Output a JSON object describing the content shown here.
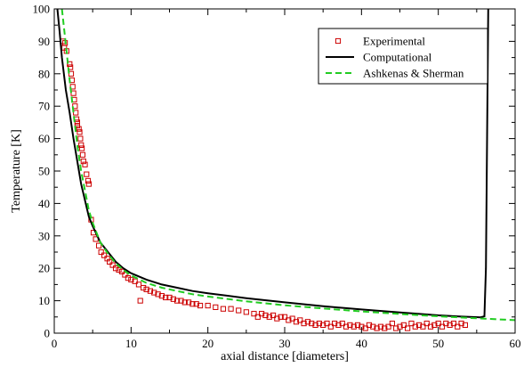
{
  "chart_data": {
    "type": "line",
    "title": "",
    "xlabel": "axial distance [diameters]",
    "ylabel": "Temperature [K]",
    "xlim": [
      0,
      60
    ],
    "ylim": [
      0,
      100
    ],
    "x_ticks": [
      0,
      10,
      20,
      30,
      40,
      50,
      60
    ],
    "y_ticks": [
      0,
      10,
      20,
      30,
      40,
      50,
      60,
      70,
      80,
      90,
      100
    ],
    "grid": false,
    "legend_position": "top-right",
    "series": [
      {
        "name": "Experimental",
        "kind": "scatter",
        "marker": "open-square",
        "color": "#cc0000",
        "points": [
          [
            1.1,
            90
          ],
          [
            1.3,
            88
          ],
          [
            1.4,
            89.5
          ],
          [
            1.6,
            87
          ],
          [
            2.0,
            83
          ],
          [
            2.1,
            82
          ],
          [
            2.2,
            80
          ],
          [
            2.3,
            78
          ],
          [
            2.4,
            76
          ],
          [
            2.5,
            74
          ],
          [
            2.6,
            72
          ],
          [
            2.7,
            70
          ],
          [
            2.8,
            68
          ],
          [
            2.9,
            66
          ],
          [
            3.0,
            65
          ],
          [
            3.0,
            64
          ],
          [
            3.2,
            63
          ],
          [
            3.3,
            62
          ],
          [
            3.4,
            60
          ],
          [
            3.5,
            58
          ],
          [
            3.6,
            57
          ],
          [
            3.7,
            55
          ],
          [
            3.8,
            53
          ],
          [
            4.0,
            52
          ],
          [
            4.2,
            49
          ],
          [
            4.4,
            47
          ],
          [
            4.5,
            46
          ],
          [
            4.8,
            35
          ],
          [
            5.1,
            31
          ],
          [
            5.4,
            29
          ],
          [
            5.8,
            27
          ],
          [
            6.1,
            25
          ],
          [
            6.5,
            24
          ],
          [
            6.9,
            23
          ],
          [
            7.2,
            22
          ],
          [
            7.6,
            21
          ],
          [
            8.0,
            20
          ],
          [
            8.4,
            19.5
          ],
          [
            8.8,
            19
          ],
          [
            9.2,
            18
          ],
          [
            9.6,
            17
          ],
          [
            10.0,
            16.5
          ],
          [
            10.5,
            16
          ],
          [
            11.0,
            15
          ],
          [
            11.2,
            10
          ],
          [
            11.6,
            14
          ],
          [
            12.0,
            13.5
          ],
          [
            12.5,
            13
          ],
          [
            13.0,
            12.5
          ],
          [
            13.5,
            12
          ],
          [
            14.0,
            11.5
          ],
          [
            14.5,
            11
          ],
          [
            15.0,
            11
          ],
          [
            15.5,
            10.5
          ],
          [
            16.0,
            10
          ],
          [
            16.5,
            10
          ],
          [
            17.0,
            9.5
          ],
          [
            17.5,
            9.5
          ],
          [
            18.0,
            9
          ],
          [
            18.5,
            9
          ],
          [
            19.0,
            8.5
          ],
          [
            20.0,
            8.5
          ],
          [
            21.0,
            8
          ],
          [
            22.0,
            7.5
          ],
          [
            23.0,
            7.5
          ],
          [
            24.0,
            7
          ],
          [
            25.0,
            6.5
          ],
          [
            26.0,
            6
          ],
          [
            26.5,
            5
          ],
          [
            27.0,
            6
          ],
          [
            27.5,
            5.5
          ],
          [
            28.0,
            5
          ],
          [
            28.5,
            5.5
          ],
          [
            29.0,
            4.5
          ],
          [
            29.5,
            5
          ],
          [
            30.0,
            5
          ],
          [
            30.5,
            4
          ],
          [
            31.0,
            4.5
          ],
          [
            31.5,
            3.5
          ],
          [
            32.0,
            4
          ],
          [
            32.5,
            3
          ],
          [
            33.0,
            3.5
          ],
          [
            33.5,
            3
          ],
          [
            34.0,
            2.5
          ],
          [
            34.5,
            3
          ],
          [
            35.0,
            2.5
          ],
          [
            35.5,
            3
          ],
          [
            36.0,
            2
          ],
          [
            36.5,
            3
          ],
          [
            37.0,
            2.5
          ],
          [
            37.5,
            3
          ],
          [
            38.0,
            2
          ],
          [
            38.5,
            2.5
          ],
          [
            39.0,
            2
          ],
          [
            39.5,
            2.5
          ],
          [
            40.0,
            2
          ],
          [
            40.5,
            1.5
          ],
          [
            41.0,
            2.5
          ],
          [
            41.5,
            2
          ],
          [
            42.0,
            1.5
          ],
          [
            42.5,
            2
          ],
          [
            43.0,
            1.5
          ],
          [
            43.5,
            2
          ],
          [
            44.0,
            3
          ],
          [
            44.5,
            1.5
          ],
          [
            45.0,
            2
          ],
          [
            45.5,
            2.5
          ],
          [
            46.0,
            1.5
          ],
          [
            46.5,
            3
          ],
          [
            47.0,
            2
          ],
          [
            47.5,
            2.5
          ],
          [
            48.0,
            2
          ],
          [
            48.5,
            3
          ],
          [
            49.0,
            2
          ],
          [
            49.5,
            2.5
          ],
          [
            50.0,
            3
          ],
          [
            50.5,
            2
          ],
          [
            51.0,
            3
          ],
          [
            51.5,
            2.5
          ],
          [
            52.0,
            3
          ],
          [
            52.5,
            2
          ],
          [
            53.0,
            3
          ],
          [
            53.5,
            2.5
          ]
        ]
      },
      {
        "name": "Computational",
        "kind": "line",
        "dash": "solid",
        "color": "#000000",
        "points": [
          [
            0.4,
            100
          ],
          [
            0.7,
            93
          ],
          [
            1.0,
            85
          ],
          [
            1.5,
            75
          ],
          [
            2.0,
            68
          ],
          [
            2.5,
            60
          ],
          [
            3.0,
            53
          ],
          [
            3.5,
            46
          ],
          [
            4.0,
            41
          ],
          [
            4.5,
            36
          ],
          [
            5.0,
            33
          ],
          [
            5.5,
            30.5
          ],
          [
            6.0,
            28
          ],
          [
            7.0,
            25
          ],
          [
            8.0,
            22
          ],
          [
            9.0,
            20
          ],
          [
            10.0,
            18.5
          ],
          [
            12.0,
            16.5
          ],
          [
            14.0,
            15
          ],
          [
            16.0,
            14
          ],
          [
            18.0,
            13
          ],
          [
            20.0,
            12.3
          ],
          [
            25.0,
            10.8
          ],
          [
            30.0,
            9.5
          ],
          [
            35.0,
            8.3
          ],
          [
            40.0,
            7.3
          ],
          [
            45.0,
            6.4
          ],
          [
            50.0,
            5.5
          ],
          [
            53.0,
            5.1
          ],
          [
            55.5,
            4.9
          ],
          [
            56.0,
            5.2
          ],
          [
            56.2,
            20
          ],
          [
            56.35,
            60
          ],
          [
            56.5,
            100
          ]
        ]
      },
      {
        "name": "Ashkenas & Sherman",
        "kind": "line",
        "dash": "dashed",
        "color": "#22cc22",
        "points": [
          [
            1.0,
            100
          ],
          [
            1.5,
            89
          ],
          [
            2.0,
            78
          ],
          [
            2.5,
            68
          ],
          [
            3.0,
            58
          ],
          [
            3.5,
            50
          ],
          [
            4.0,
            44
          ],
          [
            4.5,
            38
          ],
          [
            5.0,
            34
          ],
          [
            5.5,
            31
          ],
          [
            6.0,
            28
          ],
          [
            7.0,
            24.5
          ],
          [
            8.0,
            21.5
          ],
          [
            9.0,
            19.5
          ],
          [
            10.0,
            17.8
          ],
          [
            12.0,
            15.5
          ],
          [
            14.0,
            14
          ],
          [
            16.0,
            13
          ],
          [
            18.0,
            12
          ],
          [
            20.0,
            11.3
          ],
          [
            25.0,
            9.8
          ],
          [
            30.0,
            8.6
          ],
          [
            35.0,
            7.6
          ],
          [
            40.0,
            6.7
          ],
          [
            45.0,
            5.9
          ],
          [
            50.0,
            5.2
          ],
          [
            55.0,
            4.6
          ],
          [
            60.0,
            4.0
          ]
        ]
      }
    ]
  }
}
